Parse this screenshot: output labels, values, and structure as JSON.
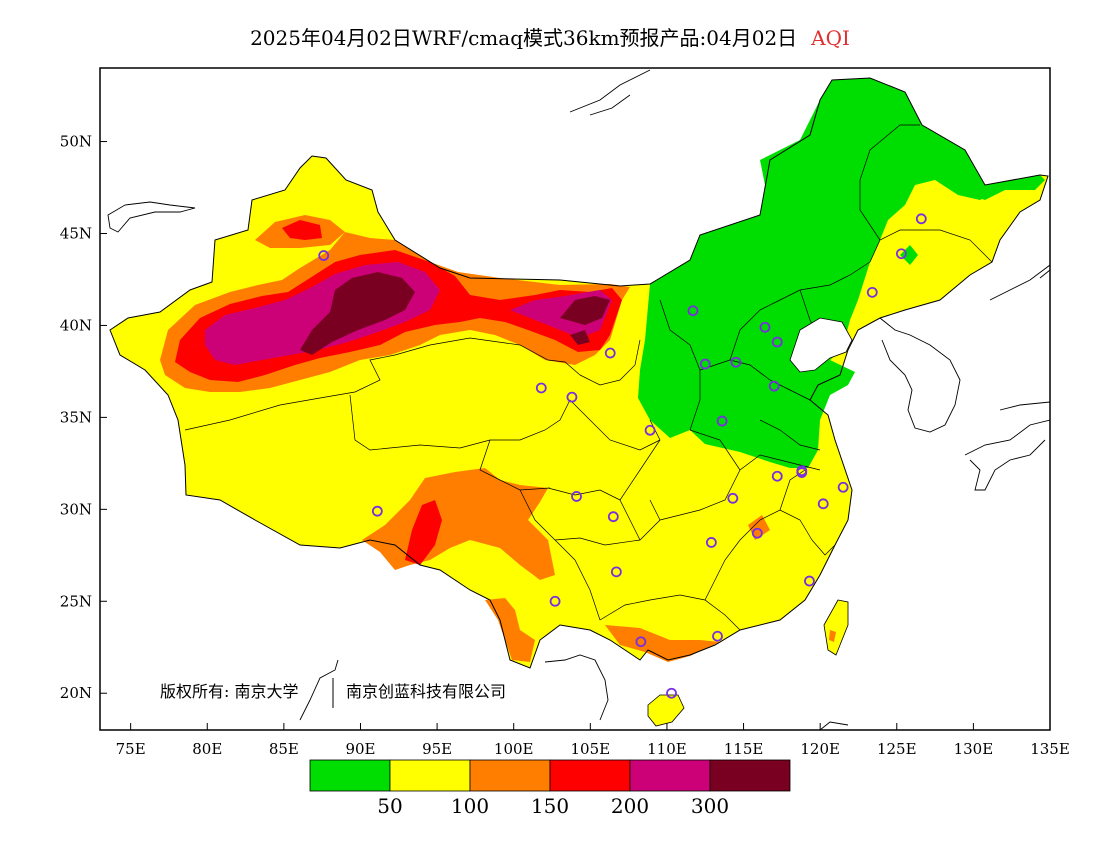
{
  "title": {
    "main": "2025年04月02日WRF/cmaq模式36km预报产品:04月02日",
    "pollutant": "AQI",
    "pollutant_color": "#e03030"
  },
  "map": {
    "lon_ticks": [
      "75E",
      "80E",
      "85E",
      "90E",
      "95E",
      "100E",
      "105E",
      "110E",
      "115E",
      "120E",
      "125E",
      "130E",
      "135E"
    ],
    "lat_ticks": [
      "20N",
      "25N",
      "30N",
      "35N",
      "40N",
      "45N",
      "50N"
    ],
    "lon_range": [
      73,
      135
    ],
    "lat_range": [
      18,
      54
    ],
    "copyright": "版权所有: 南京大学",
    "copyright2": "南京创蓝科技有限公司",
    "station_count_note": ""
  },
  "legend": {
    "colors": [
      "#00dd00",
      "#ffff00",
      "#ff7e00",
      "#ff0000",
      "#cc0077",
      "#7a0022"
    ],
    "labels": [
      "50",
      "100",
      "150",
      "200",
      "300"
    ]
  },
  "stations": [
    {
      "lon": 87.6,
      "lat": 43.8
    },
    {
      "lon": 91.1,
      "lat": 29.9
    },
    {
      "lon": 101.8,
      "lat": 36.6
    },
    {
      "lon": 103.8,
      "lat": 36.1
    },
    {
      "lon": 106.3,
      "lat": 38.5
    },
    {
      "lon": 104.1,
      "lat": 30.7
    },
    {
      "lon": 106.5,
      "lat": 29.6
    },
    {
      "lon": 106.7,
      "lat": 26.6
    },
    {
      "lon": 102.7,
      "lat": 25.0
    },
    {
      "lon": 108.3,
      "lat": 22.8
    },
    {
      "lon": 110.3,
      "lat": 20.0
    },
    {
      "lon": 113.3,
      "lat": 23.1
    },
    {
      "lon": 112.9,
      "lat": 28.2
    },
    {
      "lon": 114.3,
      "lat": 30.6
    },
    {
      "lon": 115.9,
      "lat": 28.7
    },
    {
      "lon": 119.3,
      "lat": 26.1
    },
    {
      "lon": 120.2,
      "lat": 30.3
    },
    {
      "lon": 118.8,
      "lat": 32.0
    },
    {
      "lon": 117.2,
      "lat": 31.8
    },
    {
      "lon": 121.5,
      "lat": 31.2
    },
    {
      "lon": 108.9,
      "lat": 34.3
    },
    {
      "lon": 113.6,
      "lat": 34.8
    },
    {
      "lon": 117.0,
      "lat": 36.7
    },
    {
      "lon": 114.5,
      "lat": 38.0
    },
    {
      "lon": 112.5,
      "lat": 37.9
    },
    {
      "lon": 111.7,
      "lat": 40.8
    },
    {
      "lon": 116.4,
      "lat": 39.9
    },
    {
      "lon": 117.2,
      "lat": 39.1
    },
    {
      "lon": 123.4,
      "lat": 41.8
    },
    {
      "lon": 125.3,
      "lat": 43.9
    },
    {
      "lon": 126.6,
      "lat": 45.8
    },
    {
      "lon": 118.8,
      "lat": 32.1
    }
  ]
}
